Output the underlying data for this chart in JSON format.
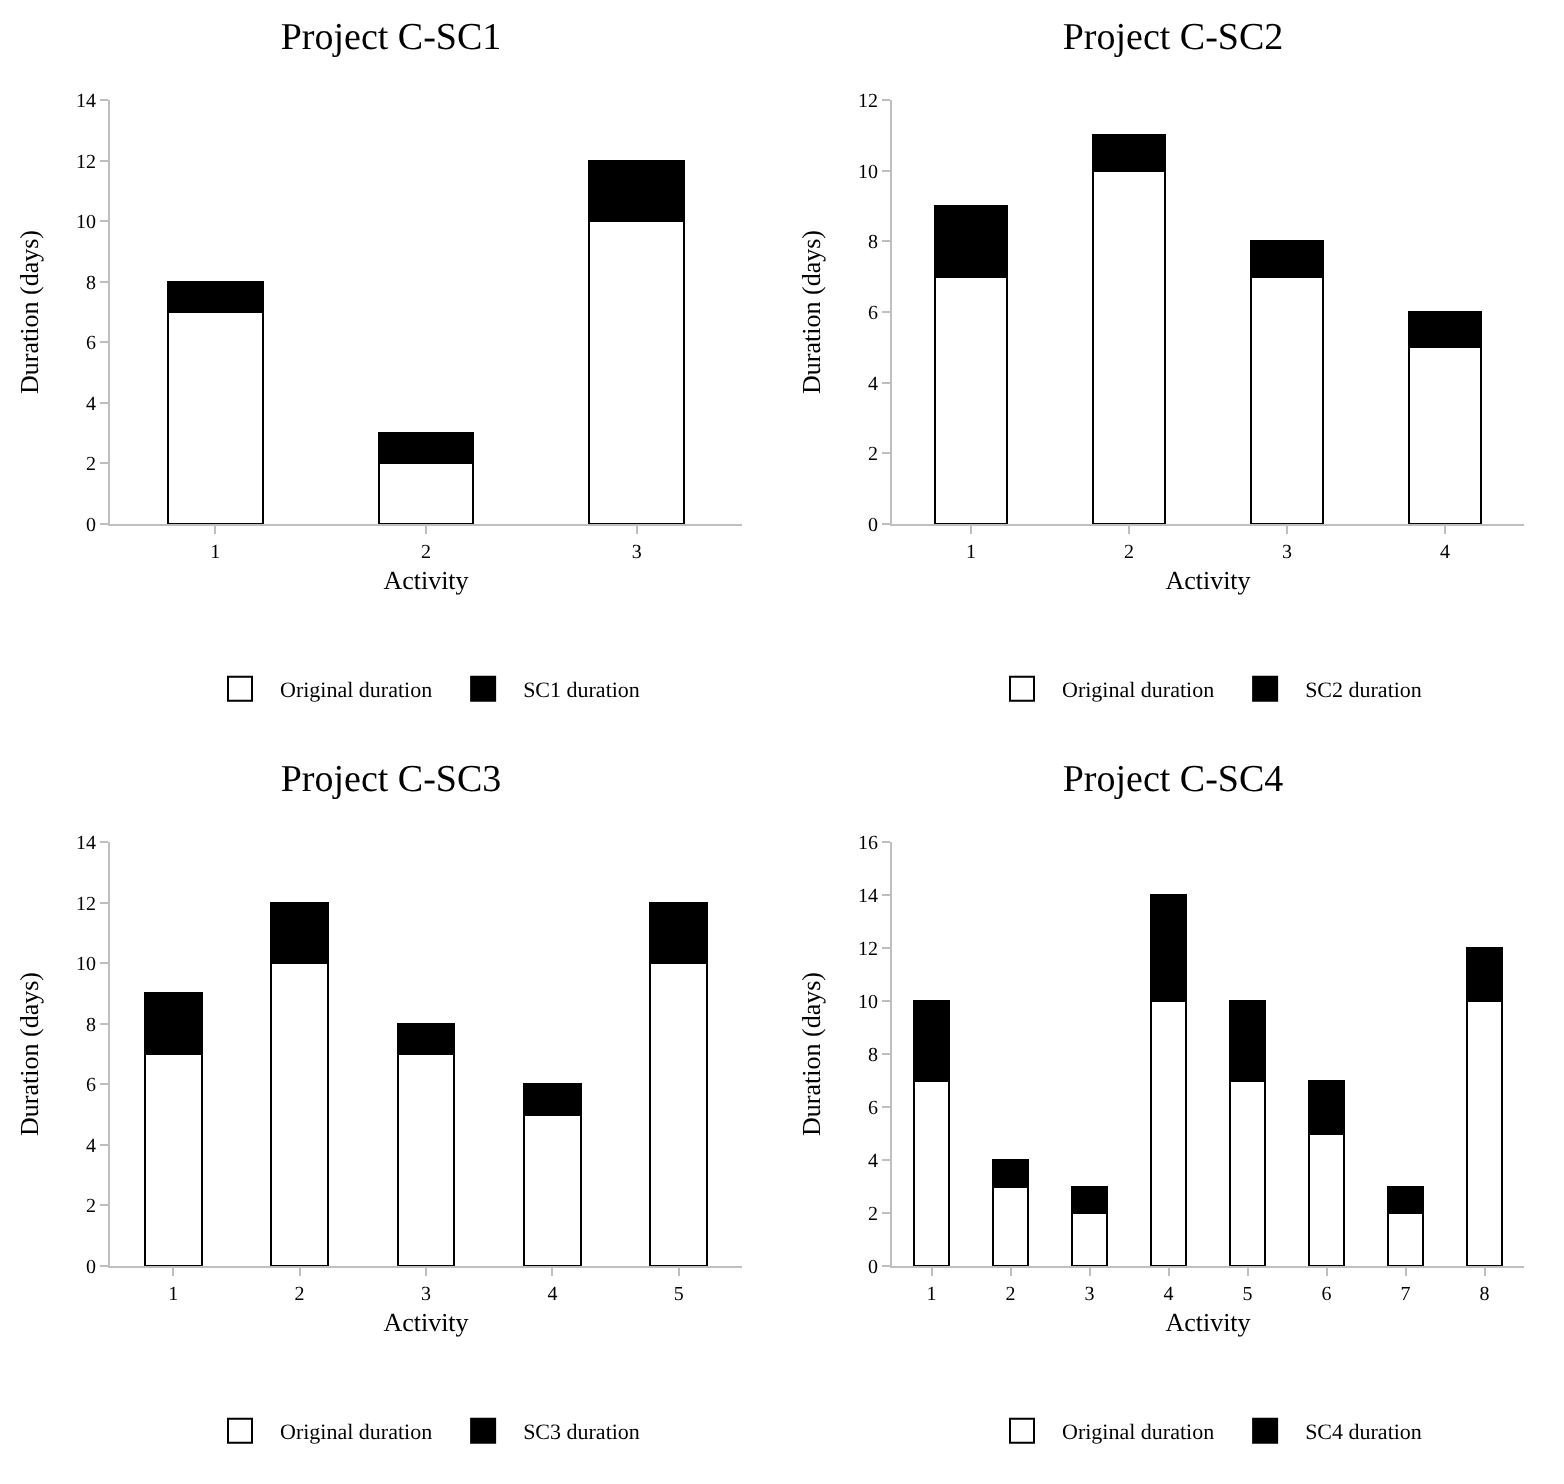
{
  "chart_data": [
    {
      "type": "bar",
      "title": "Project C-SC1",
      "xlabel": "Activity",
      "ylabel": "Duration (days)",
      "categories": [
        "1",
        "2",
        "3"
      ],
      "stacked": true,
      "ylim": [
        0,
        14
      ],
      "yticks": [
        0,
        2,
        4,
        6,
        8,
        10,
        12,
        14
      ],
      "grid": false,
      "legend": "bottom",
      "series": [
        {
          "name": "Original duration",
          "color": "#ffffff",
          "values": [
            7,
            2,
            10
          ]
        },
        {
          "name": "SC1 duration",
          "color": "#000000",
          "values": [
            1,
            1,
            2
          ]
        }
      ]
    },
    {
      "type": "bar",
      "title": "Project C-SC2",
      "xlabel": "Activity",
      "ylabel": "Duration (days)",
      "categories": [
        "1",
        "2",
        "3",
        "4"
      ],
      "stacked": true,
      "ylim": [
        0,
        12
      ],
      "yticks": [
        0,
        2,
        4,
        6,
        8,
        10,
        12
      ],
      "grid": false,
      "legend": "bottom",
      "series": [
        {
          "name": "Original duration",
          "color": "#ffffff",
          "values": [
            7,
            10,
            7,
            5
          ]
        },
        {
          "name": "SC2 duration",
          "color": "#000000",
          "values": [
            2,
            1,
            1,
            1
          ]
        }
      ]
    },
    {
      "type": "bar",
      "title": "Project C-SC3",
      "xlabel": "Activity",
      "ylabel": "Duration (days)",
      "categories": [
        "1",
        "2",
        "3",
        "4",
        "5"
      ],
      "stacked": true,
      "ylim": [
        0,
        14
      ],
      "yticks": [
        0,
        2,
        4,
        6,
        8,
        10,
        12,
        14
      ],
      "grid": false,
      "legend": "bottom",
      "series": [
        {
          "name": "Original duration",
          "color": "#ffffff",
          "values": [
            7,
            10,
            7,
            5,
            10
          ]
        },
        {
          "name": "SC3 duration",
          "color": "#000000",
          "values": [
            2,
            2,
            1,
            1,
            2
          ]
        }
      ]
    },
    {
      "type": "bar",
      "title": "Project C-SC4",
      "xlabel": "Activity",
      "ylabel": "Duration (days)",
      "categories": [
        "1",
        "2",
        "3",
        "4",
        "5",
        "6",
        "7",
        "8"
      ],
      "stacked": true,
      "ylim": [
        0,
        16
      ],
      "yticks": [
        0,
        2,
        4,
        6,
        8,
        10,
        12,
        14,
        16
      ],
      "grid": false,
      "legend": "bottom",
      "series": [
        {
          "name": "Original duration",
          "color": "#ffffff",
          "values": [
            7,
            3,
            2,
            10,
            7,
            5,
            2,
            10
          ]
        },
        {
          "name": "SC4 duration",
          "color": "#000000",
          "values": [
            3,
            1,
            1,
            4,
            3,
            2,
            1,
            2
          ]
        }
      ]
    }
  ]
}
